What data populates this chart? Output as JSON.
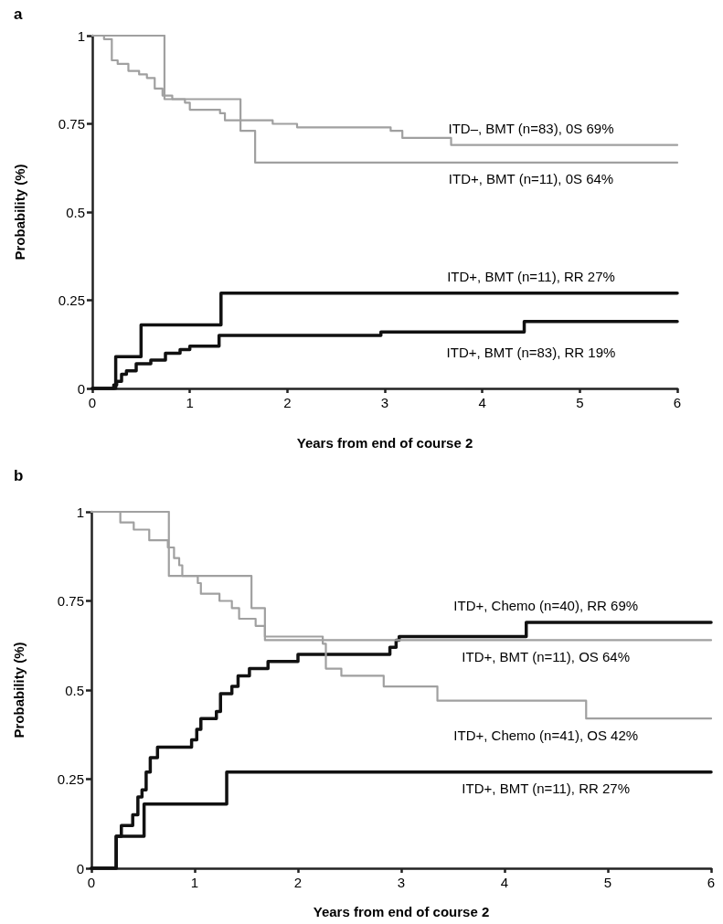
{
  "chart_data": [
    {
      "type": "step",
      "title": "a",
      "xlabel": "Years from end of course 2",
      "ylabel": "Probability (%)",
      "xlim": [
        0,
        6
      ],
      "xticks": [
        0,
        1,
        2,
        3,
        4,
        5,
        6
      ],
      "ylim": [
        0,
        1
      ],
      "yticks": [
        0,
        0.25,
        0.5,
        0.75,
        1
      ],
      "grid": false,
      "legend": false,
      "marker": "none",
      "line_style": "solid",
      "series": [
        {
          "name": "ITD–, BMT (n=83), 0S 69%",
          "color": "#a0a0a0",
          "x": [
            0,
            0.12,
            0.2,
            0.26,
            0.37,
            0.48,
            0.56,
            0.64,
            0.72,
            0.82,
            0.95,
            1.0,
            1.31,
            1.36,
            1.85,
            2.1,
            3.06,
            3.18,
            3.68,
            6
          ],
          "values": [
            1,
            0.99,
            0.93,
            0.92,
            0.9,
            0.89,
            0.88,
            0.85,
            0.83,
            0.82,
            0.81,
            0.79,
            0.78,
            0.76,
            0.75,
            0.74,
            0.73,
            0.71,
            0.69,
            0.69
          ]
        },
        {
          "name": "ITD+, BMT (n=11), 0S 64%",
          "color": "#a0a0a0",
          "x": [
            0,
            0.74,
            1.52,
            1.67,
            6
          ],
          "values": [
            1,
            0.82,
            0.73,
            0.64,
            0.64
          ]
        },
        {
          "name": "ITD+, BMT (n=11), RR 27%",
          "color": "#111111",
          "x": [
            0,
            0.24,
            0.5,
            1.32,
            6
          ],
          "values": [
            0,
            0.09,
            0.18,
            0.27,
            0.27
          ]
        },
        {
          "name": "ITD+, BMT (n=83), RR 19%",
          "color": "#111111",
          "x": [
            0,
            0.22,
            0.25,
            0.3,
            0.35,
            0.45,
            0.6,
            0.75,
            0.9,
            1.0,
            1.3,
            2.96,
            4.43,
            6
          ],
          "values": [
            0,
            0.01,
            0.02,
            0.04,
            0.05,
            0.07,
            0.08,
            0.1,
            0.11,
            0.12,
            0.15,
            0.16,
            0.19,
            0.19
          ]
        }
      ]
    },
    {
      "type": "step",
      "title": "b",
      "xlabel": "Years from end of course 2",
      "ylabel": "Probability (%)",
      "xlim": [
        0,
        6
      ],
      "xticks": [
        0,
        1,
        2,
        3,
        4,
        5,
        6
      ],
      "ylim": [
        0,
        1
      ],
      "yticks": [
        0,
        0.25,
        0.5,
        0.75,
        1
      ],
      "grid": false,
      "legend": false,
      "marker": "none",
      "line_style": "solid",
      "series": [
        {
          "name": "ITD+, Chemo (n=40), RR 69%",
          "color": "#111111",
          "x": [
            0,
            0.24,
            0.29,
            0.4,
            0.45,
            0.49,
            0.53,
            0.57,
            0.64,
            0.97,
            1.02,
            1.06,
            1.21,
            1.25,
            1.36,
            1.42,
            1.53,
            1.71,
            2.0,
            2.89,
            2.95,
            2.98,
            4.21,
            6
          ],
          "values": [
            0,
            0.09,
            0.12,
            0.15,
            0.2,
            0.22,
            0.27,
            0.31,
            0.34,
            0.36,
            0.39,
            0.42,
            0.44,
            0.49,
            0.51,
            0.54,
            0.56,
            0.58,
            0.6,
            0.62,
            0.64,
            0.65,
            0.69,
            0.69
          ]
        },
        {
          "name": "ITD+, BMT (n=11), OS 64%",
          "color": "#a0a0a0",
          "x": [
            0,
            0.75,
            1.55,
            1.68,
            6
          ],
          "values": [
            1,
            0.82,
            0.73,
            0.64,
            0.64
          ]
        },
        {
          "name": "ITD+, Chemo (n=41), OS 42%",
          "color": "#a0a0a0",
          "x": [
            0,
            0.28,
            0.41,
            0.56,
            0.74,
            0.8,
            0.85,
            0.88,
            1.03,
            1.06,
            1.24,
            1.36,
            1.43,
            1.59,
            1.68,
            2.24,
            2.27,
            2.42,
            2.83,
            3.35,
            4.79,
            6
          ],
          "values": [
            1,
            0.97,
            0.95,
            0.92,
            0.9,
            0.87,
            0.85,
            0.82,
            0.8,
            0.77,
            0.75,
            0.73,
            0.7,
            0.68,
            0.65,
            0.63,
            0.56,
            0.54,
            0.51,
            0.47,
            0.42,
            0.42
          ]
        },
        {
          "name": "ITD+, BMT (n=11), RR 27%",
          "color": "#111111",
          "x": [
            0,
            0.24,
            0.51,
            1.31,
            6
          ],
          "values": [
            0,
            0.09,
            0.18,
            0.27,
            0.27
          ]
        }
      ]
    }
  ]
}
